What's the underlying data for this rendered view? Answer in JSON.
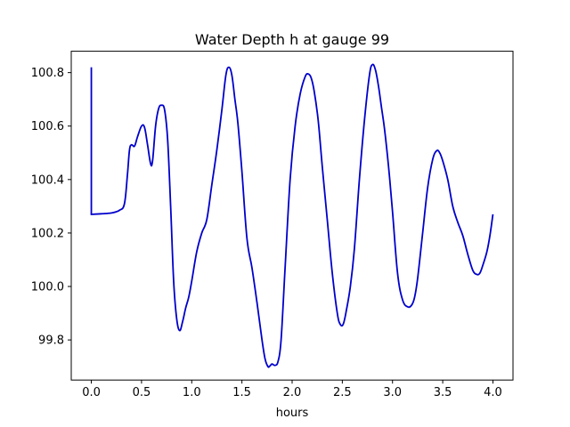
{
  "chart_data": {
    "type": "line",
    "title": "Water Depth h at gauge 99",
    "xlabel": "hours",
    "ylabel": "",
    "xlim": [
      -0.2,
      4.2
    ],
    "ylim": [
      99.65,
      100.88
    ],
    "xticks": [
      0.0,
      0.5,
      1.0,
      1.5,
      2.0,
      2.5,
      3.0,
      3.5,
      4.0
    ],
    "xtick_labels": [
      "0.0",
      "0.5",
      "1.0",
      "1.5",
      "2.0",
      "2.5",
      "3.0",
      "3.5",
      "4.0"
    ],
    "yticks": [
      99.8,
      100.0,
      100.2,
      100.4,
      100.6,
      100.8
    ],
    "ytick_labels": [
      "99.8",
      "100.0",
      "100.2",
      "100.4",
      "100.6",
      "100.8"
    ],
    "grid": false,
    "series": [
      {
        "color": "#0000cc",
        "x": [
          0.0,
          0.0,
          0.01,
          0.1,
          0.2,
          0.28,
          0.33,
          0.36,
          0.38,
          0.4,
          0.43,
          0.46,
          0.5,
          0.53,
          0.56,
          0.59,
          0.61,
          0.64,
          0.67,
          0.7,
          0.73,
          0.76,
          0.79,
          0.82,
          0.85,
          0.88,
          0.91,
          0.94,
          0.97,
          1.0,
          1.05,
          1.1,
          1.15,
          1.2,
          1.25,
          1.3,
          1.34,
          1.37,
          1.4,
          1.43,
          1.46,
          1.5,
          1.55,
          1.6,
          1.65,
          1.7,
          1.73,
          1.76,
          1.78,
          1.8,
          1.83,
          1.86,
          1.89,
          1.93,
          1.98,
          2.03,
          2.08,
          2.13,
          2.16,
          2.19,
          2.22,
          2.26,
          2.3,
          2.35,
          2.4,
          2.45,
          2.48,
          2.51,
          2.54,
          2.58,
          2.62,
          2.67,
          2.72,
          2.77,
          2.8,
          2.83,
          2.86,
          2.89,
          2.92,
          2.96,
          3.0,
          3.05,
          3.1,
          3.15,
          3.19,
          3.22,
          3.25,
          3.3,
          3.35,
          3.4,
          3.44,
          3.47,
          3.5,
          3.55,
          3.6,
          3.65,
          3.7,
          3.75,
          3.8,
          3.84,
          3.87,
          3.9,
          3.94,
          3.97,
          4.0
        ],
        "y": [
          100.82,
          100.27,
          100.27,
          100.272,
          100.275,
          100.285,
          100.31,
          100.42,
          100.51,
          100.53,
          100.525,
          100.56,
          100.6,
          100.595,
          100.53,
          100.46,
          100.47,
          100.6,
          100.665,
          100.678,
          100.66,
          100.55,
          100.3,
          100.02,
          99.88,
          99.835,
          99.87,
          99.92,
          99.96,
          100.02,
          100.13,
          100.2,
          100.25,
          100.38,
          100.51,
          100.66,
          100.79,
          100.82,
          100.79,
          100.7,
          100.61,
          100.43,
          100.18,
          100.07,
          99.94,
          99.8,
          99.73,
          99.7,
          99.703,
          99.71,
          99.705,
          99.72,
          99.8,
          100.07,
          100.4,
          100.6,
          100.72,
          100.785,
          100.795,
          100.78,
          100.73,
          100.62,
          100.45,
          100.25,
          100.05,
          99.9,
          99.858,
          99.86,
          99.91,
          100.0,
          100.14,
          100.4,
          100.62,
          100.79,
          100.83,
          100.81,
          100.75,
          100.67,
          100.59,
          100.45,
          100.28,
          100.05,
          99.95,
          99.924,
          99.93,
          99.96,
          100.03,
          100.2,
          100.37,
          100.475,
          100.508,
          100.5,
          100.47,
          100.4,
          100.3,
          100.24,
          100.19,
          100.12,
          100.06,
          100.045,
          100.05,
          100.08,
          100.13,
          100.19,
          100.27
        ]
      }
    ]
  }
}
